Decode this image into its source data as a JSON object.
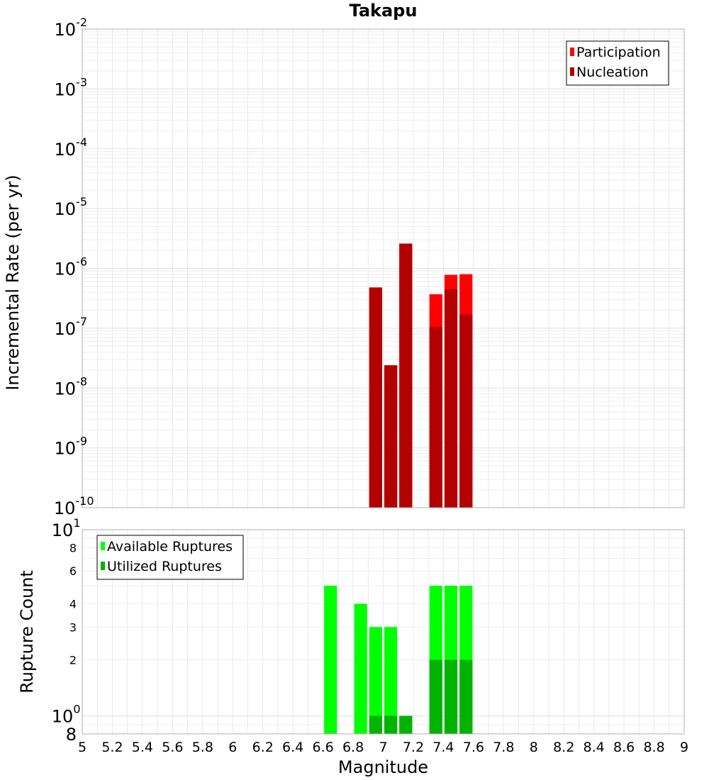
{
  "chart_data": [
    {
      "type": "bar",
      "panel": "top",
      "title": "Takapu",
      "ylabel": "Incremental Rate (per yr)",
      "yscale": "log",
      "ylim": [
        1e-10,
        0.01
      ],
      "xlim": [
        5,
        9
      ],
      "grid": true,
      "legend_position": "top-right",
      "y_tick_labels": [
        {
          "base": "10",
          "exp": "-10",
          "value": 1e-10
        },
        {
          "base": "10",
          "exp": "-9",
          "value": 1e-09
        },
        {
          "base": "10",
          "exp": "-8",
          "value": 1e-08
        },
        {
          "base": "10",
          "exp": "-7",
          "value": 1e-07
        },
        {
          "base": "10",
          "exp": "-6",
          "value": 1e-06
        },
        {
          "base": "10",
          "exp": "-5",
          "value": 1e-05
        },
        {
          "base": "10",
          "exp": "-4",
          "value": 0.0001
        },
        {
          "base": "10",
          "exp": "-3",
          "value": 0.001
        },
        {
          "base": "10",
          "exp": "-2",
          "value": 0.01
        }
      ],
      "bar_width": 0.1,
      "series": [
        {
          "name": "Participation",
          "color": "#ff0000",
          "points": [
            {
              "x": 6.95,
              "y": 4.8e-07
            },
            {
              "x": 7.05,
              "y": 2.4e-08
            },
            {
              "x": 7.15,
              "y": 2.6e-06
            },
            {
              "x": 7.35,
              "y": 3.7e-07
            },
            {
              "x": 7.45,
              "y": 7.8e-07
            },
            {
              "x": 7.55,
              "y": 8e-07
            }
          ]
        },
        {
          "name": "Nucleation",
          "color": "#b30000",
          "points": [
            {
              "x": 6.95,
              "y": 4.8e-07
            },
            {
              "x": 7.05,
              "y": 2.4e-08
            },
            {
              "x": 7.15,
              "y": 2.6e-06
            },
            {
              "x": 7.35,
              "y": 1.05e-07
            },
            {
              "x": 7.45,
              "y": 4.5e-07
            },
            {
              "x": 7.55,
              "y": 1.7e-07
            }
          ]
        }
      ]
    },
    {
      "type": "bar",
      "panel": "bottom",
      "xlabel": "Magnitude",
      "ylabel": "Rupture Count",
      "yscale": "log",
      "ylim": [
        0.8,
        10
      ],
      "xlim": [
        5,
        9
      ],
      "grid": true,
      "legend_position": "top-left",
      "x_ticks": [
        "5",
        "5.2",
        "5.4",
        "5.6",
        "5.8",
        "6",
        "6.2",
        "6.4",
        "6.6",
        "6.8",
        "7",
        "7.2",
        "7.4",
        "7.6",
        "7.8",
        "8",
        "8.2",
        "8.4",
        "8.6",
        "8.8",
        "9"
      ],
      "y_tick_labels": [
        {
          "base": "10",
          "exp": "1",
          "value": 10,
          "major": true
        },
        {
          "base": "8",
          "exp": "",
          "value": 8,
          "major": false
        },
        {
          "base": "6",
          "exp": "",
          "value": 6,
          "major": false
        },
        {
          "base": "4",
          "exp": "",
          "value": 4,
          "major": false
        },
        {
          "base": "3",
          "exp": "",
          "value": 3,
          "major": false
        },
        {
          "base": "2",
          "exp": "",
          "value": 2,
          "major": false
        },
        {
          "base": "10",
          "exp": "0",
          "value": 1,
          "major": true
        },
        {
          "base": "8",
          "exp": "",
          "value": 0.8,
          "major": true
        }
      ],
      "bar_width": 0.1,
      "series": [
        {
          "name": "Available Ruptures",
          "color": "#00ff00",
          "points": [
            {
              "x": 6.65,
              "y": 5
            },
            {
              "x": 6.85,
              "y": 4
            },
            {
              "x": 6.95,
              "y": 3
            },
            {
              "x": 7.05,
              "y": 3
            },
            {
              "x": 7.15,
              "y": 1
            },
            {
              "x": 7.35,
              "y": 5
            },
            {
              "x": 7.45,
              "y": 5
            },
            {
              "x": 7.55,
              "y": 5
            }
          ]
        },
        {
          "name": "Utilized Ruptures",
          "color": "#00b300",
          "points": [
            {
              "x": 6.95,
              "y": 1
            },
            {
              "x": 7.05,
              "y": 1
            },
            {
              "x": 7.15,
              "y": 1
            },
            {
              "x": 7.35,
              "y": 2
            },
            {
              "x": 7.45,
              "y": 2
            },
            {
              "x": 7.55,
              "y": 2
            }
          ]
        }
      ]
    }
  ]
}
